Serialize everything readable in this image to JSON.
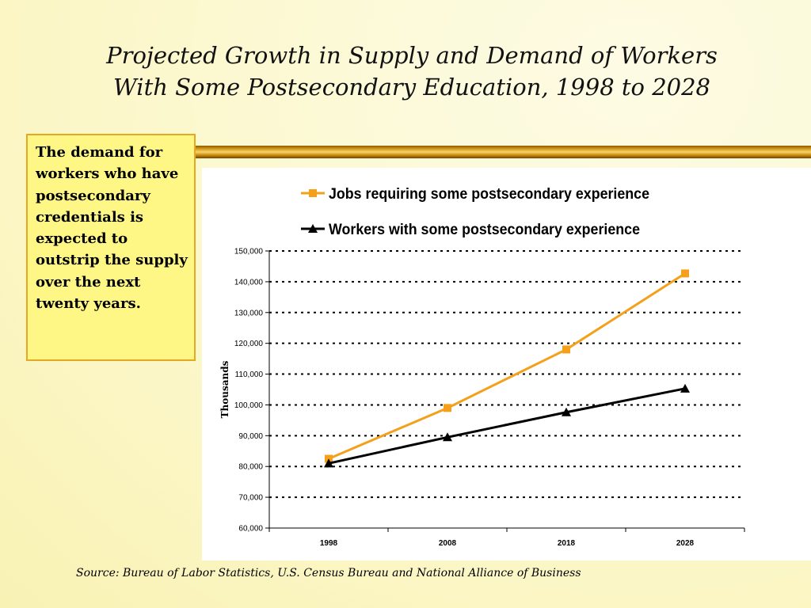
{
  "title": {
    "line1": "Projected Growth in Supply and Demand of Workers",
    "line2": "With Some Postsecondary Education, 1998 to 2028"
  },
  "callout": {
    "text": "The demand for workers who have postsecondary credentials is expected to outstrip the supply over the next twenty years."
  },
  "source": "Source: Bureau of Labor Statistics, U.S. Census Bureau and National Alliance of Business",
  "colors": {
    "jobs_series": "#f5a01a",
    "workers_series": "#000000",
    "callout_fill": "#fff785",
    "callout_border": "#e5a820"
  },
  "chart_data": {
    "type": "line",
    "ylabel": "Thousands",
    "xlabel": "",
    "categories": [
      "1998",
      "2008",
      "2018",
      "2028"
    ],
    "ylim": [
      60000,
      150000
    ],
    "y_ticks": [
      60000,
      70000,
      80000,
      90000,
      100000,
      110000,
      120000,
      130000,
      140000,
      150000
    ],
    "y_tick_labels": [
      "60,000",
      "70,000",
      "80,000",
      "90,000",
      "100,000",
      "110,000",
      "120,000",
      "130,000",
      "140,000",
      "150,000"
    ],
    "grid": "horizontal dotted",
    "legend_position": "top",
    "series": [
      {
        "name": "Jobs requiring some postsecondary experience",
        "marker": "square",
        "color": "#f5a01a",
        "values": [
          82500,
          99000,
          118000,
          142700
        ]
      },
      {
        "name": "Workers with some postsecondary experience",
        "marker": "triangle",
        "color": "#000000",
        "values": [
          81000,
          89500,
          97600,
          105300
        ]
      }
    ]
  }
}
